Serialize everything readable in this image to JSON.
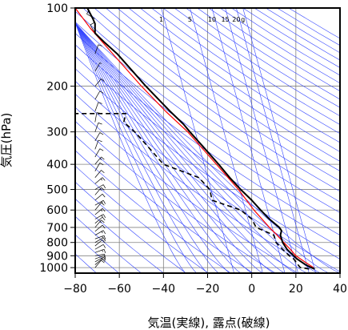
{
  "chart_data": {
    "type": "line",
    "title": "",
    "xlabel": "気温(実線), 露点(破線)",
    "ylabel": "気圧(hPa)",
    "x_unit": "°C",
    "y_scale": "log",
    "xlim": [
      -80,
      40
    ],
    "ylim": [
      1050,
      100
    ],
    "x_ticks": [
      "−80",
      "−60",
      "−40",
      "−20",
      "0",
      "20",
      "40"
    ],
    "y_ticks": [
      {
        "value": 100,
        "label": "100"
      },
      {
        "value": 200,
        "label": "200"
      },
      {
        "value": 300,
        "label": "300"
      },
      {
        "value": 400,
        "label": "400"
      },
      {
        "value": 500,
        "label": "500"
      },
      {
        "value": 600,
        "label": "600"
      },
      {
        "value": 700,
        "label": "700"
      },
      {
        "value": 800,
        "label": "800"
      },
      {
        "value": 900,
        "label": "900"
      },
      {
        "value": 1000,
        "label": "1000"
      }
    ],
    "mixing_ratio_labels": [
      {
        "label": "1",
        "t_at_top": -41
      },
      {
        "label": "5",
        "t_at_top": -28
      },
      {
        "label": "10",
        "t_at_top": -18
      },
      {
        "label": "15",
        "t_at_top": -12
      },
      {
        "label": "20",
        "t_at_top": -7
      },
      {
        "label": "g",
        "t_at_top": -4
      }
    ],
    "series": [
      {
        "role": "temperature",
        "style": "solid",
        "color": "#000000",
        "points": [
          {
            "p": 1012,
            "t": 28.5
          },
          {
            "p": 1000,
            "t": 27
          },
          {
            "p": 975,
            "t": 24.5
          },
          {
            "p": 950,
            "t": 22.5
          },
          {
            "p": 925,
            "t": 20.5
          },
          {
            "p": 900,
            "t": 19
          },
          {
            "p": 850,
            "t": 16
          },
          {
            "p": 800,
            "t": 14
          },
          {
            "p": 750,
            "t": 13
          },
          {
            "p": 720,
            "t": 13.5
          },
          {
            "p": 700,
            "t": 12.5
          },
          {
            "p": 650,
            "t": 8
          },
          {
            "p": 600,
            "t": 4
          },
          {
            "p": 550,
            "t": 0
          },
          {
            "p": 500,
            "t": -5
          },
          {
            "p": 450,
            "t": -10
          },
          {
            "p": 400,
            "t": -15
          },
          {
            "p": 350,
            "t": -21
          },
          {
            "p": 300,
            "t": -28
          },
          {
            "p": 280,
            "t": -31
          },
          {
            "p": 250,
            "t": -37
          },
          {
            "p": 200,
            "t": -48
          },
          {
            "p": 175,
            "t": -54
          },
          {
            "p": 150,
            "t": -61
          },
          {
            "p": 135,
            "t": -67
          },
          {
            "p": 125,
            "t": -71
          },
          {
            "p": 115,
            "t": -71
          },
          {
            "p": 110,
            "t": -72
          },
          {
            "p": 100,
            "t": -74.5
          }
        ]
      },
      {
        "role": "dewpoint",
        "style": "dashed",
        "color": "#000000",
        "points": [
          {
            "p": 1012,
            "t": 26
          },
          {
            "p": 1000,
            "t": 22
          },
          {
            "p": 975,
            "t": 21
          },
          {
            "p": 950,
            "t": 20
          },
          {
            "p": 925,
            "t": 19
          },
          {
            "p": 900,
            "t": 17
          },
          {
            "p": 850,
            "t": 14
          },
          {
            "p": 800,
            "t": 11
          },
          {
            "p": 750,
            "t": 10
          },
          {
            "p": 700,
            "t": 2
          },
          {
            "p": 650,
            "t": 0
          },
          {
            "p": 600,
            "t": -5
          },
          {
            "p": 550,
            "t": -18
          },
          {
            "p": 500,
            "t": -19
          },
          {
            "p": 450,
            "t": -24
          },
          {
            "p": 400,
            "t": -40
          },
          {
            "p": 350,
            "t": -46
          },
          {
            "p": 300,
            "t": -53
          },
          {
            "p": 275,
            "t": -58
          },
          {
            "p": 255,
            "t": -57
          },
          {
            "p": 255,
            "t": -80
          }
        ]
      },
      {
        "role": "parcel",
        "style": "solid",
        "color": "#ff0000",
        "points": [
          {
            "p": 1000,
            "t": 28
          },
          {
            "p": 950,
            "t": 24
          },
          {
            "p": 900,
            "t": 20
          },
          {
            "p": 850,
            "t": 17.5
          },
          {
            "p": 800,
            "t": 14.5
          },
          {
            "p": 750,
            "t": 11.5
          },
          {
            "p": 700,
            "t": 8
          },
          {
            "p": 600,
            "t": 1
          },
          {
            "p": 500,
            "t": -6
          },
          {
            "p": 400,
            "t": -16
          },
          {
            "p": 300,
            "t": -29
          },
          {
            "p": 250,
            "t": -39
          },
          {
            "p": 200,
            "t": -50
          },
          {
            "p": 150,
            "t": -63
          },
          {
            "p": 120,
            "t": -73
          },
          {
            "p": 100,
            "t": -80
          }
        ]
      }
    ],
    "wind_barbs": [
      {
        "p": 1000,
        "dir": 40,
        "kt": 10
      },
      {
        "p": 975,
        "dir": 50,
        "kt": 10
      },
      {
        "p": 950,
        "dir": 60,
        "kt": 15
      },
      {
        "p": 925,
        "dir": 70,
        "kt": 10
      },
      {
        "p": 900,
        "dir": 80,
        "kt": 10
      },
      {
        "p": 875,
        "dir": 70,
        "kt": 15
      },
      {
        "p": 850,
        "dir": 60,
        "kt": 10
      },
      {
        "p": 825,
        "dir": 50,
        "kt": 10
      },
      {
        "p": 800,
        "dir": 60,
        "kt": 10
      },
      {
        "p": 775,
        "dir": 70,
        "kt": 15
      },
      {
        "p": 750,
        "dir": 60,
        "kt": 15
      },
      {
        "p": 725,
        "dir": 50,
        "kt": 10
      },
      {
        "p": 700,
        "dir": 40,
        "kt": 15
      },
      {
        "p": 675,
        "dir": 50,
        "kt": 10
      },
      {
        "p": 650,
        "dir": 60,
        "kt": 15
      },
      {
        "p": 625,
        "dir": 50,
        "kt": 15
      },
      {
        "p": 600,
        "dir": 40,
        "kt": 10
      },
      {
        "p": 575,
        "dir": 60,
        "kt": 15
      },
      {
        "p": 550,
        "dir": 50,
        "kt": 10
      },
      {
        "p": 525,
        "dir": 40,
        "kt": 15
      },
      {
        "p": 500,
        "dir": 60,
        "kt": 10
      },
      {
        "p": 475,
        "dir": 50,
        "kt": 15
      },
      {
        "p": 450,
        "dir": 40,
        "kt": 10
      },
      {
        "p": 425,
        "dir": 30,
        "kt": 10
      },
      {
        "p": 400,
        "dir": 40,
        "kt": 15
      },
      {
        "p": 375,
        "dir": 30,
        "kt": 10
      },
      {
        "p": 350,
        "dir": 20,
        "kt": 10
      },
      {
        "p": 325,
        "dir": 30,
        "kt": 10
      },
      {
        "p": 300,
        "dir": 20,
        "kt": 10
      },
      {
        "p": 275,
        "dir": 10,
        "kt": 10
      },
      {
        "p": 250,
        "dir": 20,
        "kt": 10
      },
      {
        "p": 225,
        "dir": 30,
        "kt": 10
      },
      {
        "p": 200,
        "dir": 40,
        "kt": 10
      },
      {
        "p": 175,
        "dir": 30,
        "kt": 5
      },
      {
        "p": 150,
        "dir": 20,
        "kt": 10
      },
      {
        "p": 125,
        "dir": 330,
        "kt": 10
      },
      {
        "p": 110,
        "dir": 300,
        "kt": 10
      },
      {
        "p": 100,
        "dir": 320,
        "kt": 5
      }
    ],
    "grid": true,
    "legend": "none"
  }
}
